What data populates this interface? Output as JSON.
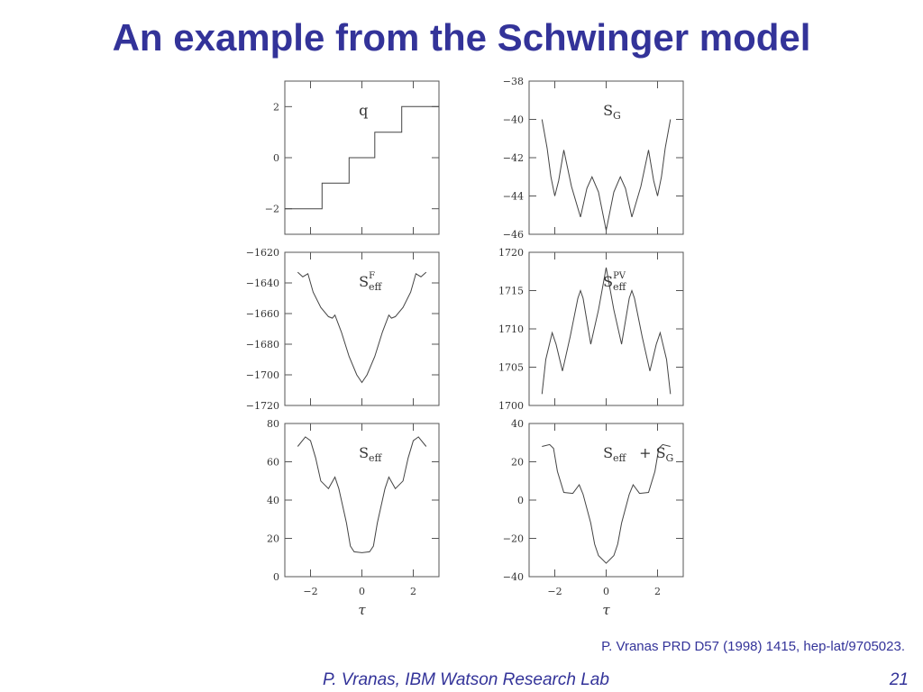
{
  "slide": {
    "title": "An example from the Schwinger model",
    "reference": "P. Vranas PRD D57 (1998) 1415, hep-lat/9705023.",
    "footer_author": "P. Vranas, IBM Watson Research Lab",
    "page_number": "21"
  },
  "colors": {
    "title": "#333399",
    "curve": "#444444",
    "frame": "#555555"
  },
  "chart_data": [
    {
      "type": "line",
      "label_main": "q",
      "label_sub": "",
      "label_sup": "",
      "xlim": [
        -3,
        3
      ],
      "ylim": [
        -3,
        3
      ],
      "yticks": [
        -2,
        0,
        2
      ],
      "x": [
        -3.0,
        -1.55,
        -1.55,
        -0.5,
        -0.5,
        0.5,
        0.5,
        1.55,
        1.55,
        3.0
      ],
      "y": [
        -2,
        -2,
        -1,
        -1,
        0,
        0,
        1,
        1,
        2,
        2
      ]
    },
    {
      "type": "line",
      "label_main": "S",
      "label_sub": "G",
      "label_sup": "",
      "xlim": [
        -3,
        3
      ],
      "ylim": [
        -46,
        -38
      ],
      "yticks": [
        -46,
        -44,
        -42,
        -40,
        -38
      ],
      "x": [
        -2.5,
        -2.3,
        -2.15,
        -2.0,
        -1.85,
        -1.65,
        -1.35,
        -1.0,
        -0.75,
        -0.55,
        -0.3,
        0.0,
        0.3,
        0.55,
        0.75,
        1.0,
        1.35,
        1.65,
        1.85,
        2.0,
        2.15,
        2.3,
        2.5
      ],
      "y": [
        -40.0,
        -41.5,
        -43.0,
        -44.0,
        -43.2,
        -41.6,
        -43.5,
        -45.1,
        -43.6,
        -43.0,
        -43.8,
        -45.8,
        -43.8,
        -43.0,
        -43.6,
        -45.1,
        -43.5,
        -41.6,
        -43.2,
        -44.0,
        -43.0,
        -41.5,
        -40.0
      ]
    },
    {
      "type": "line",
      "label_main": "S",
      "label_sub": "eff",
      "label_sup": "F",
      "xlim": [
        -3,
        3
      ],
      "ylim": [
        -1720,
        -1620
      ],
      "yticks": [
        -1720,
        -1700,
        -1680,
        -1660,
        -1640,
        -1620
      ],
      "x": [
        -2.5,
        -2.3,
        -2.1,
        -2.0,
        -1.9,
        -1.6,
        -1.3,
        -1.15,
        -1.05,
        -0.8,
        -0.5,
        -0.2,
        0.0,
        0.2,
        0.5,
        0.8,
        1.05,
        1.15,
        1.3,
        1.6,
        1.9,
        2.0,
        2.1,
        2.3,
        2.5
      ],
      "y": [
        -1633,
        -1636,
        -1634,
        -1640,
        -1646,
        -1656,
        -1662,
        -1663,
        -1661,
        -1672,
        -1688,
        -1700,
        -1705,
        -1700,
        -1688,
        -1672,
        -1661,
        -1663,
        -1662,
        -1656,
        -1646,
        -1640,
        -1634,
        -1636,
        -1633
      ]
    },
    {
      "type": "line",
      "label_main": "S",
      "label_sub": "eff",
      "label_sup": "PV",
      "xlim": [
        -3,
        3
      ],
      "ylim": [
        1700,
        1720
      ],
      "yticks": [
        1700,
        1705,
        1710,
        1715,
        1720
      ],
      "x": [
        -2.5,
        -2.35,
        -2.1,
        -1.95,
        -1.7,
        -1.4,
        -1.1,
        -1.0,
        -0.9,
        -0.6,
        -0.3,
        0.0,
        0.3,
        0.6,
        0.9,
        1.0,
        1.1,
        1.4,
        1.7,
        1.95,
        2.1,
        2.35,
        2.5
      ],
      "y": [
        1701.5,
        1706.0,
        1709.5,
        1708.0,
        1704.5,
        1709.0,
        1714.0,
        1715.0,
        1714.0,
        1708.0,
        1712.5,
        1718.0,
        1712.5,
        1708.0,
        1714.0,
        1715.0,
        1714.0,
        1709.0,
        1704.5,
        1708.0,
        1709.5,
        1706.0,
        1701.5
      ]
    },
    {
      "type": "line",
      "label_main": "S",
      "label_sub": "eff",
      "label_sup": "",
      "xlim": [
        -3,
        3
      ],
      "ylim": [
        0,
        80
      ],
      "yticks": [
        0,
        20,
        40,
        60,
        80
      ],
      "x": [
        -2.5,
        -2.2,
        -2.0,
        -1.8,
        -1.6,
        -1.3,
        -1.05,
        -0.9,
        -0.6,
        -0.45,
        -0.3,
        0.0,
        0.3,
        0.45,
        0.6,
        0.9,
        1.05,
        1.3,
        1.6,
        1.8,
        2.0,
        2.2,
        2.5
      ],
      "y": [
        68.0,
        73.0,
        71.0,
        62.0,
        50.0,
        46.0,
        52.0,
        46.0,
        28.0,
        16.0,
        13.0,
        12.5,
        13.0,
        16.0,
        28.0,
        46.0,
        52.0,
        46.0,
        50.0,
        62.0,
        71.0,
        73.0,
        68.0
      ]
    },
    {
      "type": "line",
      "label_main": "S",
      "label_sub": "eff",
      "label_sup": "",
      "label_extra": "+  S",
      "label_extra_sub": "G",
      "xlim": [
        -3,
        3
      ],
      "ylim": [
        -40,
        40
      ],
      "yticks": [
        -40,
        -20,
        0,
        20,
        40
      ],
      "x": [
        -2.5,
        -2.2,
        -2.05,
        -1.9,
        -1.65,
        -1.3,
        -1.05,
        -0.9,
        -0.6,
        -0.45,
        -0.3,
        0.0,
        0.3,
        0.45,
        0.6,
        0.9,
        1.05,
        1.3,
        1.65,
        1.9,
        2.05,
        2.2,
        2.5
      ],
      "y": [
        28.0,
        29.0,
        27.0,
        15.0,
        4.0,
        3.5,
        8.0,
        3.0,
        -12.0,
        -23.0,
        -29.0,
        -33.0,
        -29.0,
        -23.0,
        -12.0,
        3.0,
        8.0,
        3.5,
        4.0,
        15.0,
        27.0,
        29.0,
        28.0
      ]
    }
  ],
  "xaxis": {
    "ticks": [
      -2,
      0,
      2
    ],
    "label": "τ"
  }
}
